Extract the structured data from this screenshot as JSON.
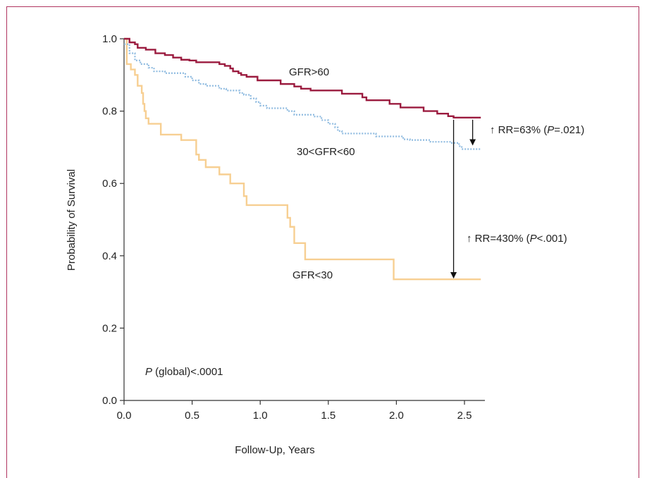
{
  "chart_data": {
    "type": "line",
    "title": "",
    "xlabel": "Follow-Up, Years",
    "ylabel": "Probability of Survival",
    "xlim": [
      0,
      2.65
    ],
    "ylim": [
      0,
      1.0
    ],
    "x_ticks": [
      "0.0",
      "0.5",
      "1.0",
      "1.5",
      "2.0",
      "2.5"
    ],
    "y_ticks": [
      "0.0",
      "0.2",
      "0.4",
      "0.6",
      "0.8",
      "1.0"
    ],
    "grid": false,
    "series": [
      {
        "name": "GFR>60",
        "color": "#9b1b3f",
        "style": "solid",
        "points": [
          [
            0,
            1.0
          ],
          [
            0.04,
            0.99
          ],
          [
            0.08,
            0.985
          ],
          [
            0.1,
            0.975
          ],
          [
            0.16,
            0.97
          ],
          [
            0.23,
            0.96
          ],
          [
            0.3,
            0.955
          ],
          [
            0.36,
            0.948
          ],
          [
            0.42,
            0.942
          ],
          [
            0.48,
            0.94
          ],
          [
            0.53,
            0.935
          ],
          [
            0.7,
            0.93
          ],
          [
            0.74,
            0.925
          ],
          [
            0.78,
            0.918
          ],
          [
            0.8,
            0.91
          ],
          [
            0.84,
            0.905
          ],
          [
            0.86,
            0.9
          ],
          [
            0.9,
            0.895
          ],
          [
            0.98,
            0.885
          ],
          [
            1.15,
            0.875
          ],
          [
            1.25,
            0.868
          ],
          [
            1.3,
            0.862
          ],
          [
            1.37,
            0.857
          ],
          [
            1.6,
            0.848
          ],
          [
            1.75,
            0.838
          ],
          [
            1.78,
            0.83
          ],
          [
            1.95,
            0.82
          ],
          [
            2.03,
            0.81
          ],
          [
            2.2,
            0.8
          ],
          [
            2.3,
            0.793
          ],
          [
            2.38,
            0.786
          ],
          [
            2.42,
            0.782
          ],
          [
            2.62,
            0.782
          ]
        ]
      },
      {
        "name": "30<GFR<60",
        "color": "#8fbbe0",
        "style": "dotted",
        "points": [
          [
            0,
            0.985
          ],
          [
            0.04,
            0.96
          ],
          [
            0.08,
            0.94
          ],
          [
            0.12,
            0.93
          ],
          [
            0.18,
            0.92
          ],
          [
            0.22,
            0.91
          ],
          [
            0.3,
            0.905
          ],
          [
            0.45,
            0.895
          ],
          [
            0.5,
            0.885
          ],
          [
            0.55,
            0.875
          ],
          [
            0.6,
            0.87
          ],
          [
            0.7,
            0.862
          ],
          [
            0.75,
            0.857
          ],
          [
            0.85,
            0.85
          ],
          [
            0.88,
            0.845
          ],
          [
            0.93,
            0.835
          ],
          [
            0.97,
            0.825
          ],
          [
            1.0,
            0.815
          ],
          [
            1.05,
            0.808
          ],
          [
            1.2,
            0.8
          ],
          [
            1.25,
            0.79
          ],
          [
            1.4,
            0.785
          ],
          [
            1.45,
            0.775
          ],
          [
            1.5,
            0.765
          ],
          [
            1.55,
            0.755
          ],
          [
            1.57,
            0.745
          ],
          [
            1.6,
            0.738
          ],
          [
            1.85,
            0.73
          ],
          [
            2.05,
            0.722
          ],
          [
            2.1,
            0.72
          ],
          [
            2.25,
            0.715
          ],
          [
            2.4,
            0.712
          ],
          [
            2.46,
            0.703
          ],
          [
            2.48,
            0.695
          ],
          [
            2.62,
            0.695
          ]
        ]
      },
      {
        "name": "GFR<30",
        "color": "#f7cf92",
        "style": "solid",
        "points": [
          [
            0,
            1.0
          ],
          [
            0.02,
            0.93
          ],
          [
            0.05,
            0.915
          ],
          [
            0.08,
            0.9
          ],
          [
            0.1,
            0.87
          ],
          [
            0.13,
            0.85
          ],
          [
            0.14,
            0.82
          ],
          [
            0.15,
            0.8
          ],
          [
            0.16,
            0.78
          ],
          [
            0.18,
            0.765
          ],
          [
            0.27,
            0.735
          ],
          [
            0.42,
            0.72
          ],
          [
            0.53,
            0.68
          ],
          [
            0.55,
            0.665
          ],
          [
            0.6,
            0.645
          ],
          [
            0.7,
            0.625
          ],
          [
            0.78,
            0.6
          ],
          [
            0.88,
            0.565
          ],
          [
            0.9,
            0.54
          ],
          [
            1.2,
            0.505
          ],
          [
            1.22,
            0.48
          ],
          [
            1.25,
            0.435
          ],
          [
            1.33,
            0.39
          ],
          [
            1.98,
            0.335
          ],
          [
            2.62,
            0.335
          ]
        ]
      }
    ],
    "annotations": {
      "series_label_high": "GFR>60",
      "series_label_mid": "30<GFR<60",
      "series_label_low": "GFR<30",
      "rr_mid_prefix": "↑ RR=63% (",
      "rr_mid_p": "P",
      "rr_mid_suffix": "=.021)",
      "rr_low_prefix": "↑ RR=430% (",
      "rr_low_p": "P",
      "rr_low_suffix": "<.001)",
      "global_p_italic": "P",
      "global_p_rest": " (global)<.0001"
    }
  }
}
